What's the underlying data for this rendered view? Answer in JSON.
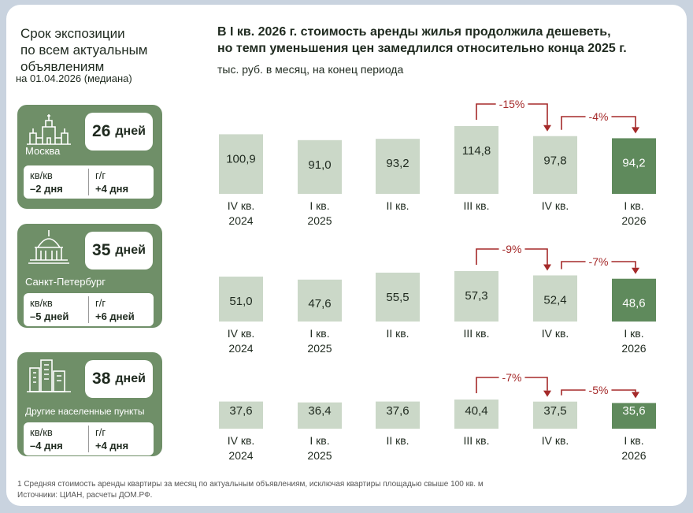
{
  "left": {
    "title_lines": [
      "Срок экспозиции",
      "по всем актуальным",
      "объявлениям"
    ],
    "subtitle": "на 01.04.2026 (медиана)",
    "cities": [
      {
        "name": "Москва",
        "days": "26",
        "days_unit": "дней",
        "qq_label": "кв/кв",
        "qq_value": "–2 дня",
        "yy_label": "г/г",
        "yy_value": "+4 дня",
        "icon": "kremlin-icon"
      },
      {
        "name": "Санкт-Петербург",
        "days": "35",
        "days_unit": "дней",
        "qq_label": "кв/кв",
        "qq_value": "–5 дней",
        "yy_label": "г/г",
        "yy_value": "+6 дней",
        "icon": "cathedral-icon"
      },
      {
        "name": "Другие населенные пункты",
        "days": "38",
        "days_unit": "дней",
        "qq_label": "кв/кв",
        "qq_value": "–4 дня",
        "yy_label": "г/г",
        "yy_value": "+4 дня",
        "icon": "buildings-icon"
      }
    ]
  },
  "header": {
    "title_line1": "В I кв. 2026 г. стоимость аренды жилья продолжила дешеветь,",
    "title_line2": "но темп уменьшения цен замедлился относительно конца 2025 г.",
    "units": "тыс. руб. в месяц, на конец периода"
  },
  "footer": {
    "note": "1 Средняя стоимость аренды квартиры за месяц по актуальным объявлениям, исключая квартиры площадью свыше 100 кв. м",
    "source": "Источники: ЦИАН, расчеты ДОМ.РФ."
  },
  "colors": {
    "bar": "#cbd8c8",
    "bar_highlight": "#5f8a5c",
    "arrow": "#a52a2a",
    "panel": "#6f8f68",
    "background": "#c9d3df"
  },
  "chart_data": [
    {
      "type": "bar",
      "series_label": "Москва",
      "categories": [
        [
          "IV кв.",
          "2024"
        ],
        [
          "I кв.",
          "2025"
        ],
        [
          "II кв.",
          ""
        ],
        [
          "III кв.",
          ""
        ],
        [
          "IV кв.",
          ""
        ],
        [
          "I кв.",
          "2026"
        ]
      ],
      "values": [
        100.9,
        91.0,
        93.2,
        114.8,
        97.8,
        94.2
      ],
      "value_labels": [
        "100,9",
        "91,0",
        "93,2",
        "114,8",
        "97,8",
        "94,2"
      ],
      "highlight_index": 5,
      "annotations": [
        {
          "from": 3,
          "to": 4,
          "label": "-15%"
        },
        {
          "from": 4,
          "to": 5,
          "label": "-4%"
        }
      ]
    },
    {
      "type": "bar",
      "series_label": "Санкт-Петербург",
      "categories": [
        [
          "IV кв.",
          "2024"
        ],
        [
          "I кв.",
          "2025"
        ],
        [
          "II кв.",
          ""
        ],
        [
          "III кв.",
          ""
        ],
        [
          "IV кв.",
          ""
        ],
        [
          "I кв.",
          "2026"
        ]
      ],
      "values": [
        51.0,
        47.6,
        55.5,
        57.3,
        52.4,
        48.6
      ],
      "value_labels": [
        "51,0",
        "47,6",
        "55,5",
        "57,3",
        "52,4",
        "48,6"
      ],
      "highlight_index": 5,
      "annotations": [
        {
          "from": 3,
          "to": 4,
          "label": "-9%"
        },
        {
          "from": 4,
          "to": 5,
          "label": "-7%"
        }
      ]
    },
    {
      "type": "bar",
      "series_label": "Другие населенные пункты",
      "categories": [
        [
          "IV кв.",
          "2024"
        ],
        [
          "I кв.",
          "2025"
        ],
        [
          "II кв.",
          ""
        ],
        [
          "III кв.",
          ""
        ],
        [
          "IV кв.",
          ""
        ],
        [
          "I кв.",
          "2026"
        ]
      ],
      "values": [
        37.6,
        36.4,
        37.6,
        40.4,
        37.5,
        35.6
      ],
      "value_labels": [
        "37,6",
        "36,4",
        "37,6",
        "40,4",
        "37,5",
        "35,6"
      ],
      "highlight_index": 5,
      "annotations": [
        {
          "from": 3,
          "to": 4,
          "label": "-7%"
        },
        {
          "from": 4,
          "to": 5,
          "label": "-5%"
        }
      ]
    }
  ]
}
